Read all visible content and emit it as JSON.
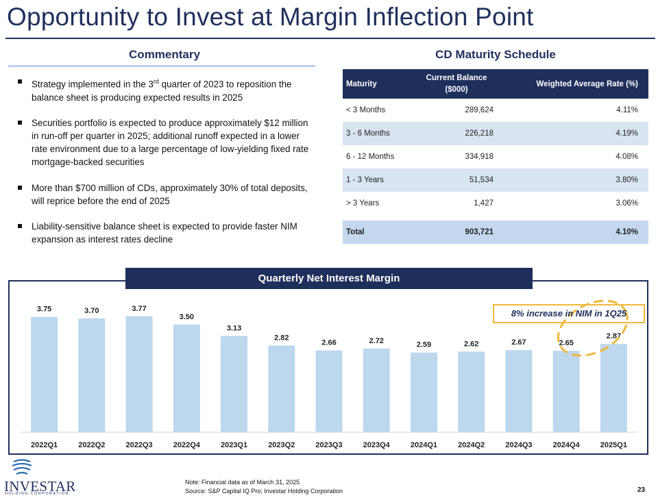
{
  "title": "Opportunity to Invest at Margin Inflection Point",
  "commentary": {
    "heading": "Commentary",
    "bullets": [
      {
        "pre": "Strategy implemented in the 3",
        "sup": "rd",
        "post": " quarter of 2023 to reposition the balance sheet is producing expected results in 2025"
      },
      {
        "pre": "Securities portfolio is expected to produce approximately $12 million in run-off per quarter in 2025; additional runoff expected in a lower rate environment  due to a large percentage of low-yielding fixed rate mortgage-backed securities",
        "sup": "",
        "post": ""
      },
      {
        "pre": "More than $700 million of CDs, approximately 30% of total deposits, will reprice before the end of 2025",
        "sup": "",
        "post": ""
      },
      {
        "pre": "Liability-sensitive balance sheet is expected to provide faster NIM expansion as interest rates decline",
        "sup": "",
        "post": ""
      }
    ]
  },
  "cd_schedule": {
    "heading": "CD Maturity Schedule",
    "columns": [
      "Maturity",
      "Current Balance",
      "($000)",
      "Weighted Average Rate (%)"
    ],
    "rows": [
      {
        "maturity": "< 3 Months",
        "balance": "289,624",
        "rate": "4.11%"
      },
      {
        "maturity": "3 - 6 Months",
        "balance": "226,218",
        "rate": "4.19%"
      },
      {
        "maturity": "6 - 12 Months",
        "balance": "334,918",
        "rate": "4.08%"
      },
      {
        "maturity": "1 - 3 Years",
        "balance": "51,534",
        "rate": "3.80%"
      },
      {
        "maturity": "> 3 Years",
        "balance": "1,427",
        "rate": "3.06%"
      }
    ],
    "total": {
      "maturity": "Total",
      "balance": "903,721",
      "rate": "4.10%"
    }
  },
  "chart_header": "Quarterly Net Interest Margin",
  "callout": "8% increase in NIM in 1Q25",
  "chart_data": {
    "type": "bar",
    "title": "Quarterly Net Interest Margin",
    "categories": [
      "2022Q1",
      "2022Q2",
      "2022Q3",
      "2022Q4",
      "2023Q1",
      "2023Q2",
      "2023Q3",
      "2023Q4",
      "2024Q1",
      "2024Q2",
      "2024Q3",
      "2024Q4",
      "2025Q1"
    ],
    "values": [
      3.75,
      3.7,
      3.77,
      3.5,
      3.13,
      2.82,
      2.66,
      2.72,
      2.59,
      2.62,
      2.67,
      2.65,
      2.87
    ],
    "labels": [
      "3.75",
      "3.70",
      "3.77",
      "3.50",
      "3.13",
      "2.82",
      "2.66",
      "2.72",
      "2.59",
      "2.62",
      "2.67",
      "2.65",
      "2.87"
    ],
    "xlabel": "",
    "ylabel": "",
    "ylim": [
      0,
      4.5
    ],
    "grid": false,
    "bar_color": "#bdd7ee",
    "highlight": [
      "2024Q4",
      "2025Q1"
    ]
  },
  "colors": {
    "navy": "#1f2f5c",
    "bar": "#bdd7ee",
    "highlight": "#f0b83a",
    "table_alt": "#d9e4f1"
  },
  "logo": {
    "word": "INVESTAR",
    "sub": "HOLDING CORPORATION"
  },
  "footer": {
    "note": "Note: Financial data as of March 31, 2025",
    "source": "Source: S&P Capital IQ Pro; Investar Holding Corporation",
    "page": "23"
  }
}
